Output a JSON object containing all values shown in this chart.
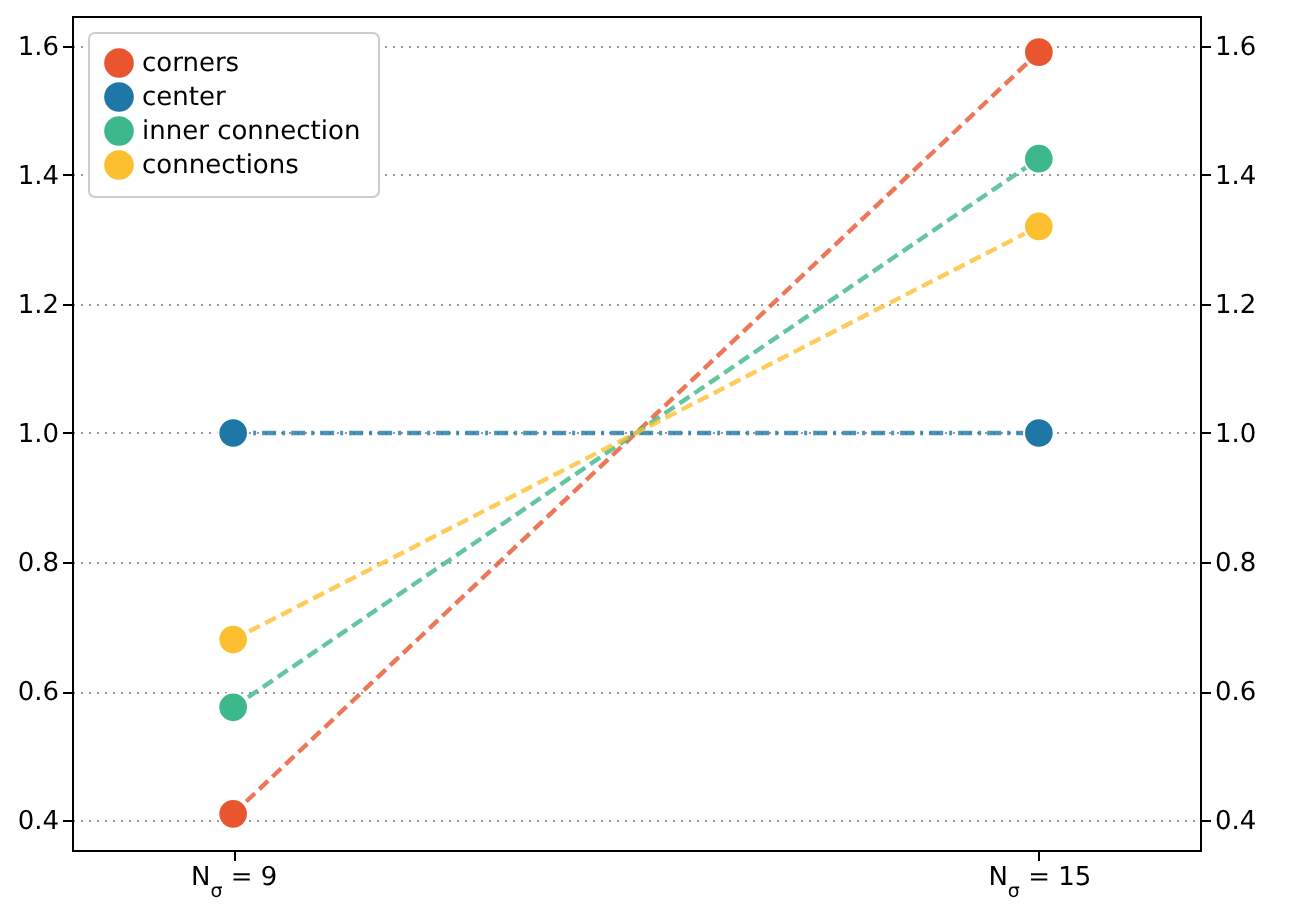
{
  "chart_data": {
    "type": "line",
    "categories": [
      "N$_{σ}$ = 9",
      "N$_{σ}$ = 15"
    ],
    "series": [
      {
        "name": "corners",
        "color": "#e8552e",
        "values": [
          0.41,
          1.59
        ],
        "line_style": "dashed"
      },
      {
        "name": "center",
        "color": "#1f77a5",
        "values": [
          1.0,
          1.0
        ],
        "line_style": "dashdot"
      },
      {
        "name": "inner connection",
        "color": "#3cb88a",
        "values": [
          0.575,
          1.425
        ],
        "line_style": "dashed"
      },
      {
        "name": "connections",
        "color": "#fcbf30",
        "values": [
          0.68,
          1.32
        ],
        "line_style": "dashed"
      }
    ],
    "ylim": [
      0.354,
      1.646
    ],
    "yticks": [
      0.4,
      0.6,
      0.8,
      {
        "value": 1,
        "label": "1.0"
      },
      1.2,
      1.4,
      1.6
    ],
    "y2lim": [
      0.354,
      1.646
    ],
    "y2ticks": [
      0.4,
      0.6,
      0.8,
      {
        "value": 1,
        "label": "1.0"
      },
      1.2,
      1.4,
      1.6
    ],
    "grid": "y",
    "legend": "top left",
    "marker": "circle"
  }
}
